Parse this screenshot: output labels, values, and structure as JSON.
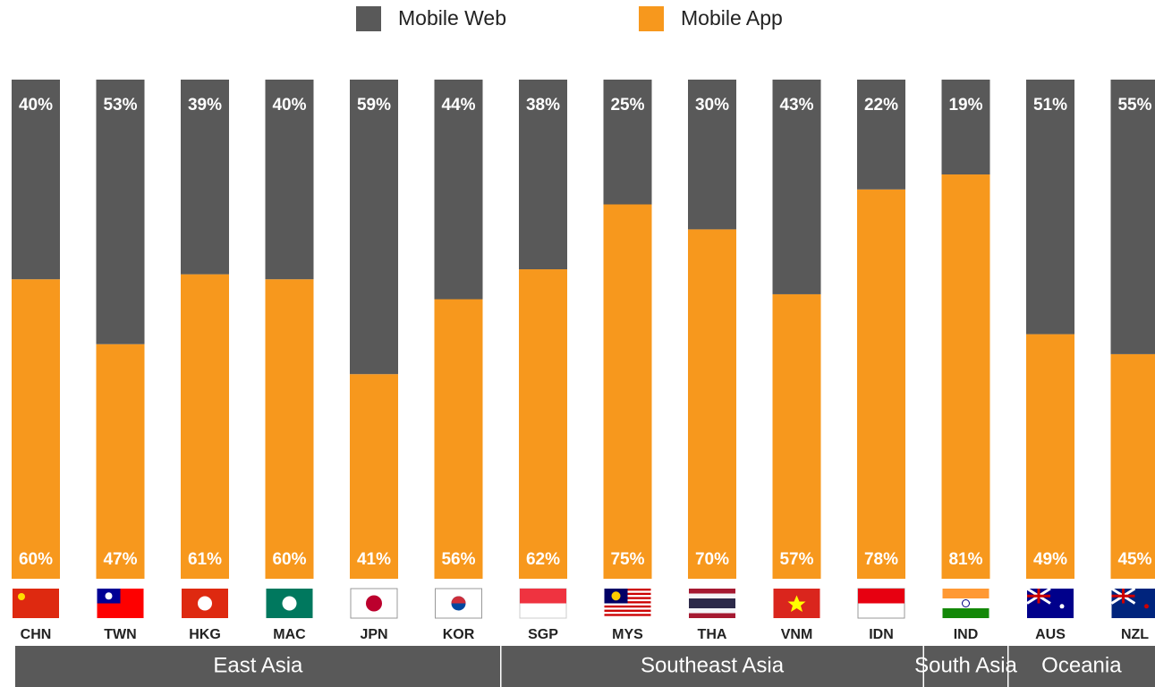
{
  "chart_data": {
    "type": "stacked_bar",
    "categories": [
      "CHN",
      "TWN",
      "HKG",
      "MAC",
      "JPN",
      "KOR",
      "SGP",
      "MYS",
      "THA",
      "VNM",
      "IDN",
      "IND",
      "AUS",
      "NZL"
    ],
    "series": [
      {
        "name": "Mobile Web",
        "color": "#595959",
        "values": [
          40,
          53,
          39,
          40,
          59,
          44,
          38,
          25,
          30,
          43,
          22,
          19,
          51,
          55
        ],
        "value_labels": [
          "40%",
          "53%",
          "39%",
          "40%",
          "59%",
          "44%",
          "38%",
          "25%",
          "30%",
          "43%",
          "22%",
          "19%",
          "51%",
          "55%"
        ]
      },
      {
        "name": "Mobile App",
        "color": "#f7981d",
        "values": [
          60,
          47,
          61,
          60,
          41,
          56,
          62,
          75,
          70,
          57,
          78,
          81,
          49,
          45
        ],
        "value_labels": [
          "60%",
          "47%",
          "61%",
          "60%",
          "41%",
          "56%",
          "62%",
          "75%",
          "70%",
          "57%",
          "78%",
          "81%",
          "49%",
          "45%"
        ]
      }
    ],
    "groups": [
      {
        "label": "East Asia",
        "members": [
          "CHN",
          "TWN",
          "HKG",
          "MAC",
          "JPN",
          "KOR"
        ]
      },
      {
        "label": "Southeast Asia",
        "members": [
          "SGP",
          "MYS",
          "THA",
          "VNM",
          "IDN"
        ]
      },
      {
        "label": "South Asia",
        "members": [
          "IND"
        ]
      },
      {
        "label": "Oceania",
        "members": [
          "AUS",
          "NZL"
        ]
      }
    ],
    "legend": "top"
  }
}
